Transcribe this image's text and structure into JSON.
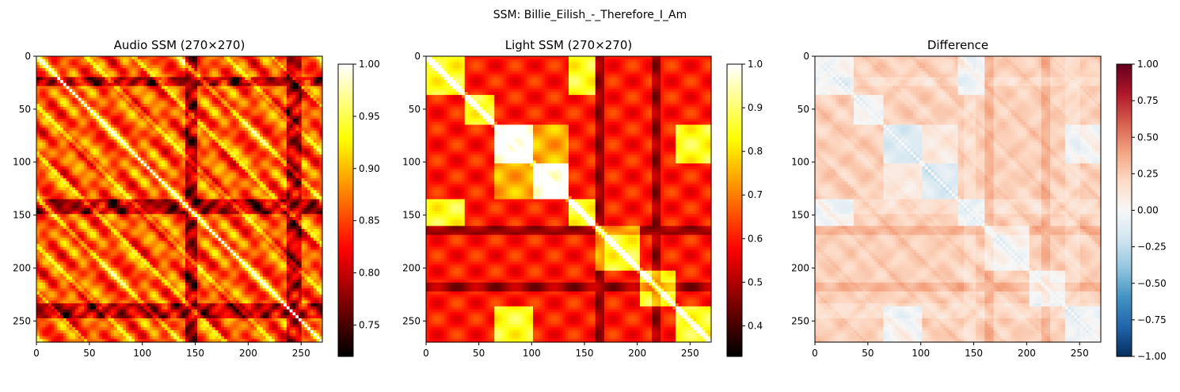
{
  "suptitle": "SSM: Billie_Eilish_-_Therefore_I_Am",
  "chart_data": [
    {
      "type": "heatmap",
      "title": "Audio SSM (270×270)",
      "colormap": "hot",
      "size": 270,
      "xticks": [
        0,
        50,
        100,
        150,
        200,
        250
      ],
      "yticks": [
        0,
        50,
        100,
        150,
        200,
        250
      ],
      "xlim": [
        0,
        270
      ],
      "ylim": [
        270,
        0
      ],
      "vmin": 0.72,
      "vmax": 1.0,
      "colorbar_ticks": [
        "0.75",
        "0.80",
        "0.85",
        "0.90",
        "0.95",
        "1.00"
      ],
      "colorbar_values": [
        0.75,
        0.8,
        0.85,
        0.9,
        0.95,
        1.0
      ]
    },
    {
      "type": "heatmap",
      "title": "Light SSM (270×270)",
      "colormap": "hot",
      "size": 270,
      "xticks": [
        0,
        50,
        100,
        150,
        200,
        250
      ],
      "yticks": [
        0,
        50,
        100,
        150,
        200,
        250
      ],
      "xlim": [
        0,
        270
      ],
      "ylim": [
        270,
        0
      ],
      "vmin": 0.33,
      "vmax": 1.0,
      "colorbar_ticks": [
        "0.4",
        "0.5",
        "0.6",
        "0.7",
        "0.8",
        "0.9",
        "1.0"
      ],
      "colorbar_values": [
        0.4,
        0.5,
        0.6,
        0.7,
        0.8,
        0.9,
        1.0
      ]
    },
    {
      "type": "heatmap",
      "title": "Difference",
      "colormap": "RdBu_r",
      "size": 270,
      "xticks": [
        0,
        50,
        100,
        150,
        200,
        250
      ],
      "yticks": [
        0,
        50,
        100,
        150,
        200,
        250
      ],
      "xlim": [
        0,
        270
      ],
      "ylim": [
        270,
        0
      ],
      "vmin": -1.0,
      "vmax": 1.0,
      "colorbar_ticks": [
        "1.00",
        "0.75",
        "0.50",
        "0.25",
        "0.00",
        "−0.25",
        "−0.50",
        "−0.75",
        "−1.00"
      ],
      "colorbar_values": [
        1.0,
        0.75,
        0.5,
        0.25,
        0.0,
        -0.25,
        -0.5,
        -0.75,
        -1.0
      ]
    }
  ]
}
